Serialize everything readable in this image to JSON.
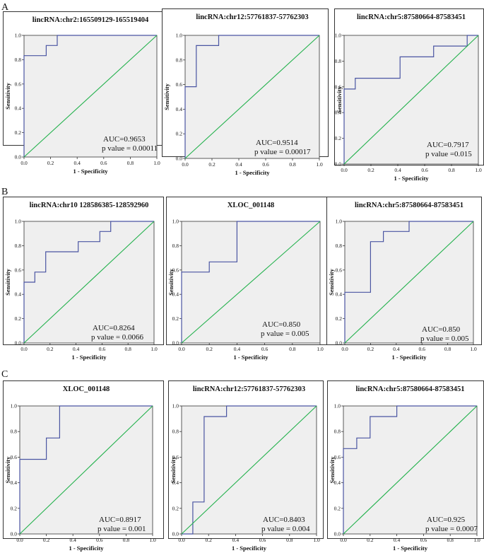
{
  "colors": {
    "roc": "#4a55a2",
    "reference": "#22b14c",
    "plot_bg": "#efefef",
    "frame": "#333333"
  },
  "rows": [
    {
      "label": "A"
    },
    {
      "label": "B"
    },
    {
      "label": "C"
    }
  ],
  "chart_data": [
    {
      "type": "line",
      "row": "A",
      "title": "lincRNA:chr2:165509129-165519404",
      "xlabel": "1 - Specificity",
      "ylabel": "Sensitivity",
      "xlim": [
        0,
        1
      ],
      "ylim": [
        0,
        1
      ],
      "xticks": [
        "0.0",
        "0.2",
        "0.4",
        "0.6",
        "0.8",
        "1.0"
      ],
      "yticks": [
        "0.0",
        "0.2",
        "0.4",
        "0.6",
        "0.8",
        "1.0"
      ],
      "auc_text": "AUC=0.9653",
      "p_text": "p value = 0.00011",
      "series": [
        {
          "name": "ROC",
          "x": [
            0,
            0,
            0.167,
            0.167,
            0.25,
            0.25,
            1
          ],
          "y": [
            0,
            0.833,
            0.833,
            0.917,
            0.917,
            1,
            1
          ]
        },
        {
          "name": "Reference",
          "x": [
            0,
            1
          ],
          "y": [
            0,
            1
          ]
        }
      ]
    },
    {
      "type": "line",
      "row": "A",
      "title": "lincRNA:chr12:57761837-57762303",
      "xlabel": "1 - Specificity",
      "ylabel": "Sensitivity",
      "xlim": [
        0,
        1
      ],
      "ylim": [
        0,
        1
      ],
      "xticks": [
        "0.0",
        "0.2",
        "0.4",
        "0.6",
        "0.8",
        "1.0"
      ],
      "yticks": [
        "0.0",
        "0.2",
        "0.4",
        "0.6",
        "0.8",
        "1.0"
      ],
      "auc_text": "AUC=0.9514",
      "p_text": "p value = 0.00017",
      "series": [
        {
          "name": "ROC",
          "x": [
            0,
            0,
            0.083,
            0.083,
            0.25,
            0.25,
            1
          ],
          "y": [
            0,
            0.583,
            0.583,
            0.917,
            0.917,
            1,
            1
          ]
        },
        {
          "name": "Reference",
          "x": [
            0,
            1
          ],
          "y": [
            0,
            1
          ]
        }
      ]
    },
    {
      "type": "line",
      "row": "A",
      "title": "lincRNA:chr5:87580664-87583451",
      "xlabel": "1 - Specificity",
      "ylabel": "Sensitivity",
      "xlim": [
        0,
        1
      ],
      "ylim": [
        0,
        1
      ],
      "xticks": [
        "0.0",
        "0.2",
        "0.4",
        "0.6",
        "0.8",
        "1.0"
      ],
      "yticks": [
        "0.0",
        "0.2",
        "0.4",
        "0.6",
        "0.8",
        "1.0"
      ],
      "auc_text": "AUC=0.7917",
      "p_text": "p value =0.015",
      "series": [
        {
          "name": "ROC",
          "x": [
            0,
            0,
            0.083,
            0.083,
            0.417,
            0.417,
            0.667,
            0.667,
            0.917,
            0.917,
            1
          ],
          "y": [
            0,
            0.583,
            0.583,
            0.667,
            0.667,
            0.833,
            0.833,
            0.917,
            0.917,
            1,
            1
          ]
        },
        {
          "name": "Reference",
          "x": [
            0,
            1
          ],
          "y": [
            0,
            1
          ]
        }
      ]
    },
    {
      "type": "line",
      "row": "B",
      "title": "lincRNA:chr10 128586385-128592960",
      "xlabel": "1 - Specificity",
      "ylabel": "Sensitivity",
      "xlim": [
        0,
        1
      ],
      "ylim": [
        0,
        1
      ],
      "xticks": [
        "0.0",
        "0.2",
        "0.4",
        "0.6",
        "0.8",
        "1.0"
      ],
      "yticks": [
        "0.0",
        "0.2",
        "0.4",
        "0.6",
        "0.8",
        "1.0"
      ],
      "auc_text": "AUC=0.8264",
      "p_text": "p value = 0.0066",
      "series": [
        {
          "name": "ROC",
          "x": [
            0,
            0,
            0.083,
            0.083,
            0.167,
            0.167,
            0.417,
            0.417,
            0.583,
            0.583,
            0.667,
            0.667,
            1
          ],
          "y": [
            0,
            0.5,
            0.5,
            0.583,
            0.583,
            0.75,
            0.75,
            0.833,
            0.833,
            0.917,
            0.917,
            1,
            1
          ]
        },
        {
          "name": "Reference",
          "x": [
            0,
            1
          ],
          "y": [
            0,
            1
          ]
        }
      ]
    },
    {
      "type": "line",
      "row": "B",
      "title": "XLOC_001148",
      "xlabel": "1 - Specificity",
      "ylabel": "Sensitivity",
      "xlim": [
        0,
        1
      ],
      "ylim": [
        0,
        1
      ],
      "xticks": [
        "0.0",
        "0.2",
        "0.4",
        "0.6",
        "0.8",
        "1.0"
      ],
      "yticks": [
        "0.0",
        "0.2",
        "0.4",
        "0.6",
        "0.8",
        "1.0"
      ],
      "auc_text": "AUC=0.850",
      "p_text": "p value = 0.005",
      "series": [
        {
          "name": "ROC",
          "x": [
            0,
            0,
            0.2,
            0.2,
            0.4,
            0.4,
            1
          ],
          "y": [
            0,
            0.583,
            0.583,
            0.667,
            0.667,
            1,
            1
          ]
        },
        {
          "name": "Reference",
          "x": [
            0,
            1
          ],
          "y": [
            0,
            1
          ]
        }
      ]
    },
    {
      "type": "line",
      "row": "B",
      "title": "lincRNA:chr5:87580664-87583451",
      "xlabel": "1 - Specificity",
      "ylabel": "Sensitivity",
      "xlim": [
        0,
        1
      ],
      "ylim": [
        0,
        1
      ],
      "xticks": [
        "0.0",
        "0.2",
        "0.4",
        "0.6",
        "0.8",
        "1.0"
      ],
      "yticks": [
        "0.0",
        "0.2",
        "0.4",
        "0.6",
        "0.8",
        "1.0"
      ],
      "auc_text": "AUC=0.850",
      "p_text": "p value = 0.005",
      "series": [
        {
          "name": "ROC",
          "x": [
            0,
            0,
            0.2,
            0.2,
            0.3,
            0.3,
            0.5,
            0.5,
            1
          ],
          "y": [
            0,
            0.417,
            0.417,
            0.833,
            0.833,
            0.917,
            0.917,
            1,
            1
          ]
        },
        {
          "name": "Reference",
          "x": [
            0,
            1
          ],
          "y": [
            0,
            1
          ]
        }
      ]
    },
    {
      "type": "line",
      "row": "C",
      "title": "XLOC_001148",
      "xlabel": "1 - Specificity",
      "ylabel": "Sensitivity",
      "xlim": [
        0,
        1
      ],
      "ylim": [
        0,
        1
      ],
      "xticks": [
        "0.0",
        "0.2",
        "0.4",
        "0.6",
        "0.8",
        "1.0"
      ],
      "yticks": [
        "0.0",
        "0.2",
        "0.4",
        "0.6",
        "0.8",
        "1.0"
      ],
      "auc_text": "AUC=0.8917",
      "p_text": "p value = 0.001",
      "series": [
        {
          "name": "ROC",
          "x": [
            0,
            0,
            0.2,
            0.2,
            0.3,
            0.3,
            1
          ],
          "y": [
            0,
            0.583,
            0.583,
            0.75,
            0.75,
            1,
            1
          ]
        },
        {
          "name": "Reference",
          "x": [
            0,
            1
          ],
          "y": [
            0,
            1
          ]
        }
      ]
    },
    {
      "type": "line",
      "row": "C",
      "title": "lincRNA:chr12:57761837-57762303",
      "xlabel": "1 - Specificity",
      "ylabel": "Sensitivity",
      "xlim": [
        0,
        1
      ],
      "ylim": [
        0,
        1
      ],
      "xticks": [
        "0.0",
        "0.2",
        "0.4",
        "0.6",
        "0.8",
        "1.0"
      ],
      "yticks": [
        "0.0",
        "0.2",
        "0.4",
        "0.6",
        "0.8",
        "1.0"
      ],
      "auc_text": "AUC=0.8403",
      "p_text": "p value = 0.004",
      "series": [
        {
          "name": "ROC",
          "x": [
            0,
            0.083,
            0.083,
            0.167,
            0.167,
            0.333,
            0.333,
            1
          ],
          "y": [
            0,
            0,
            0.25,
            0.25,
            0.917,
            0.917,
            1,
            1
          ]
        },
        {
          "name": "Reference",
          "x": [
            0,
            1
          ],
          "y": [
            0,
            1
          ]
        }
      ]
    },
    {
      "type": "line",
      "row": "C",
      "title": "lincRNA:chr5:87580664-87583451",
      "xlabel": "1 - Specificity",
      "ylabel": "Sensitivity",
      "xlim": [
        0,
        1
      ],
      "ylim": [
        0,
        1
      ],
      "xticks": [
        "0.0",
        "0.2",
        "0.4",
        "0.6",
        "0.8",
        "1.0"
      ],
      "yticks": [
        "0.0",
        "0.2",
        "0.4",
        "0.6",
        "0.8",
        "1.0"
      ],
      "auc_text": "AUC=0.925",
      "p_text": "p value = 0.0007",
      "series": [
        {
          "name": "ROC",
          "x": [
            0,
            0,
            0.1,
            0.1,
            0.2,
            0.2,
            0.4,
            0.4,
            1
          ],
          "y": [
            0,
            0.667,
            0.667,
            0.75,
            0.75,
            0.917,
            0.917,
            1,
            1
          ]
        },
        {
          "name": "Reference",
          "x": [
            0,
            1
          ],
          "y": [
            0,
            1
          ]
        }
      ]
    }
  ]
}
